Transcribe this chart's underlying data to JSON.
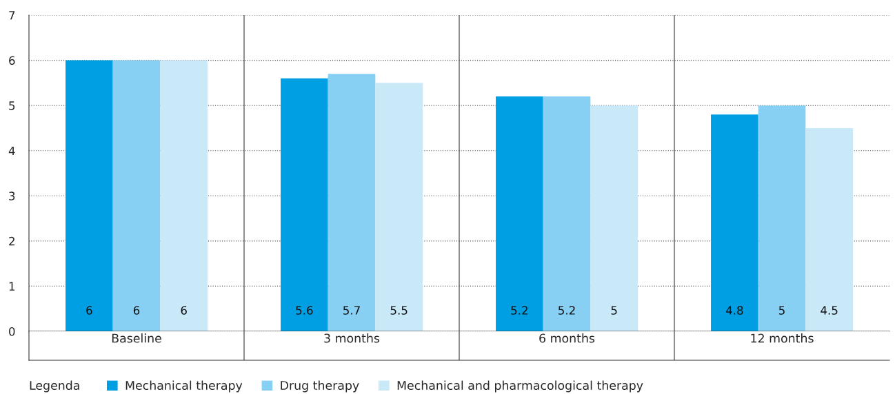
{
  "chart_data": {
    "type": "bar",
    "categories": [
      "Baseline",
      "3 months",
      "6 months",
      "12 months"
    ],
    "series": [
      {
        "name": "Mechanical therapy",
        "color": "#009fe3",
        "values": [
          6,
          5.6,
          5.2,
          4.8
        ]
      },
      {
        "name": "Drug therapy",
        "color": "#87cff3",
        "values": [
          6,
          5.7,
          5.2,
          5
        ]
      },
      {
        "name": "Mechanical and pharmacological therapy",
        "color": "#c9e8f8",
        "values": [
          6,
          5.5,
          5,
          4.5
        ]
      }
    ],
    "ylim": [
      0,
      7
    ],
    "yticks": [
      0,
      1,
      2,
      3,
      4,
      5,
      6,
      7
    ],
    "grid": "y",
    "data_labels": true,
    "legend": "bottom",
    "legend_title": "Legenda"
  }
}
